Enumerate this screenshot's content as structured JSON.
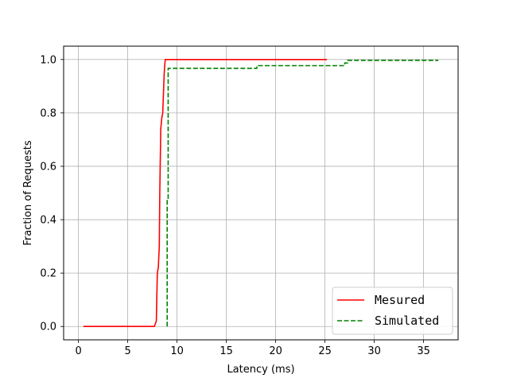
{
  "chart_data": {
    "type": "line",
    "title": "",
    "xlabel": "Latency (ms)",
    "ylabel": "Fraction of Requests",
    "xlim": [
      -1.5,
      38.5
    ],
    "ylim": [
      -0.05,
      1.05
    ],
    "xticks": [
      0,
      5,
      10,
      15,
      20,
      25,
      30,
      35
    ],
    "yticks": [
      "0.0",
      "0.2",
      "0.4",
      "0.6",
      "0.8",
      "1.0"
    ],
    "grid": true,
    "legend_position": "lower right",
    "series": [
      {
        "name": "Mesured",
        "color": "#ff0000",
        "style": "solid",
        "x": [
          0.5,
          7.7,
          7.9,
          8.0,
          8.1,
          8.2,
          8.25,
          8.35,
          8.45,
          8.55,
          8.7,
          8.8,
          9.0,
          25.2
        ],
        "y": [
          0.0,
          0.0,
          0.02,
          0.2,
          0.22,
          0.3,
          0.5,
          0.74,
          0.78,
          0.8,
          0.95,
          1.0,
          1.0,
          1.0
        ]
      },
      {
        "name": "Simulated",
        "color": "#008000",
        "style": "dashed",
        "x": [
          9.0,
          9.0,
          9.1,
          9.1,
          18.1,
          18.1,
          27.0,
          27.0,
          27.3,
          27.3,
          36.5
        ],
        "y": [
          0.0,
          0.48,
          0.48,
          0.967,
          0.967,
          0.977,
          0.977,
          0.987,
          0.987,
          0.997,
          0.997
        ]
      }
    ]
  }
}
